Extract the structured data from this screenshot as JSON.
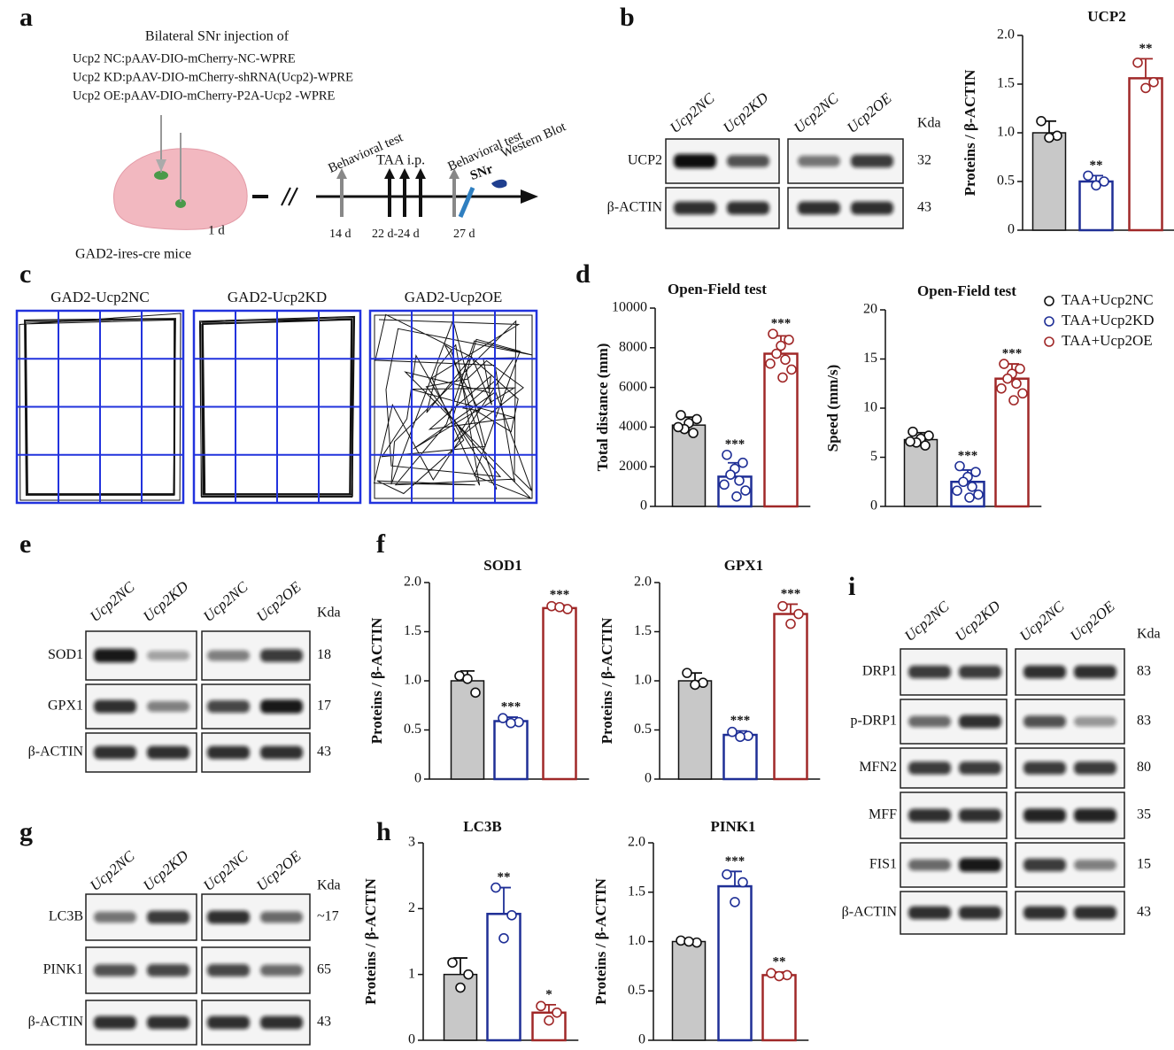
{
  "panels": [
    "a",
    "b",
    "c",
    "d",
    "e",
    "f",
    "g",
    "h",
    "i"
  ],
  "schematic": {
    "heading": "Bilateral SNr injection of",
    "constructs": [
      "Ucp2 NC:pAAV-DIO-mCherry-NC-WPRE",
      "Ucp2 KD:pAAV-DIO-mCherry-shRNA(Ucp2)-WPRE",
      "Ucp2 OE:pAAV-DIO-mCherry-P2A-Ucp2 -WPRE"
    ],
    "behavioral_1": "Behavioral test",
    "behavioral_2": "Behavioral test",
    "taa": "TAA i.p.",
    "snr": "SNr",
    "western": "Western Blot",
    "day_14": "14 d",
    "day_22": "22 d-24 d",
    "day_27": "27 d",
    "day_1": "1 d",
    "mice": "GAD2-ires-cre mice"
  },
  "open_field": [
    "GAD2-Ucp2NC",
    "GAD2-Ucp2KD",
    "GAD2-Ucp2OE"
  ],
  "blots": {
    "b": {
      "lanes": [
        "Ucp2NC",
        "Ucp2KD",
        "Ucp2NC",
        "Ucp2OE"
      ],
      "kda": "Kda",
      "rows": [
        {
          "label": "UCP2",
          "size": 32
        },
        {
          "label": "β-ACTIN",
          "size": 43
        }
      ]
    },
    "e": {
      "lanes": [
        "Ucp2NC",
        "Ucp2KD",
        "Ucp2NC",
        "Ucp2OE"
      ],
      "kda": "Kda",
      "rows": [
        {
          "label": "SOD1",
          "size": 18
        },
        {
          "label": "GPX1",
          "size": 17
        },
        {
          "label": "β-ACTIN",
          "size": 43
        }
      ]
    },
    "g": {
      "lanes": [
        "Ucp2NC",
        "Ucp2KD",
        "Ucp2NC",
        "Ucp2OE"
      ],
      "kda": "Kda",
      "rows": [
        {
          "label": "LC3B",
          "size": "~17"
        },
        {
          "label": "PINK1",
          "size": 65
        },
        {
          "label": "β-ACTIN",
          "size": 43
        }
      ]
    },
    "i": {
      "lanes": [
        "Ucp2NC",
        "Ucp2KD",
        "Ucp2NC",
        "Ucp2OE"
      ],
      "kda": "Kda",
      "rows": [
        {
          "label": "DRP1",
          "size": 83
        },
        {
          "label": "p-DRP1",
          "size": 83
        },
        {
          "label": "MFN2",
          "size": 80
        },
        {
          "label": "MFF",
          "size": 35
        },
        {
          "label": "FIS1",
          "size": 15
        },
        {
          "label": "β-ACTIN",
          "size": 43
        }
      ]
    }
  },
  "chart_data": [
    {
      "type": "bar",
      "title": "UCP2",
      "ylabel": "Proteins / β-ACTIN",
      "ylim": [
        0,
        2
      ],
      "yticks": [
        0,
        0.5,
        {
          "value": 1,
          "label": "1.0"
        },
        1.5,
        {
          "value": 2,
          "label": "2.0"
        }
      ],
      "colors": [
        "#c8c8c8",
        "#1f2f96",
        "#a02828"
      ],
      "values": [
        1.0,
        0.5,
        1.56
      ],
      "errors": [
        0.12,
        0.06,
        0.2
      ],
      "points": [
        [
          1.12,
          0.97,
          0.95
        ],
        [
          0.56,
          0.5,
          0.46
        ],
        [
          1.72,
          1.52,
          1.46
        ]
      ],
      "annotations": [
        null,
        "**",
        "**"
      ]
    },
    {
      "type": "bar",
      "title": "Open-Field test",
      "ylabel": "Total distance (mm)",
      "ylim": [
        0,
        10000
      ],
      "yticks": [
        0,
        2000,
        4000,
        6000,
        8000,
        10000
      ],
      "colors": [
        "#c8c8c8",
        "#1f2f96",
        "#a02828"
      ],
      "values": [
        4100,
        1500,
        7700
      ],
      "errors": [
        400,
        700,
        900
      ],
      "points": [
        [
          4600,
          4400,
          4200,
          3900,
          3700,
          4000
        ],
        [
          2600,
          2200,
          1900,
          1600,
          1300,
          1100,
          800,
          500
        ],
        [
          8700,
          8400,
          8100,
          7700,
          7400,
          7200,
          6900,
          6500
        ]
      ],
      "annotations": [
        null,
        "***",
        "***"
      ]
    },
    {
      "type": "bar",
      "title": "Open-Field test",
      "ylabel": "Speed (mm/s)",
      "ylim": [
        0,
        20
      ],
      "yticks": [
        0,
        5,
        10,
        15,
        20
      ],
      "colors": [
        "#c8c8c8",
        "#1f2f96",
        "#a02828"
      ],
      "values": [
        6.8,
        2.5,
        13
      ],
      "errors": [
        0.7,
        1.2,
        1.5
      ],
      "points": [
        [
          7.6,
          7.2,
          6.9,
          6.5,
          6.2,
          6.6
        ],
        [
          4.1,
          3.5,
          3.0,
          2.5,
          2.0,
          1.6,
          1.2,
          0.9
        ],
        [
          14.5,
          14.0,
          13.5,
          13.0,
          12.5,
          12.0,
          11.5,
          10.8
        ]
      ],
      "annotations": [
        null,
        "***",
        "***"
      ],
      "legend": [
        "TAA+Ucp2NC",
        "TAA+Ucp2KD",
        "TAA+Ucp2OE"
      ]
    },
    {
      "type": "bar",
      "title": "SOD1",
      "ylabel": "Proteins / β-ACTIN",
      "ylim": [
        0,
        2
      ],
      "yticks": [
        0,
        0.5,
        {
          "value": 1,
          "label": "1.0"
        },
        1.5,
        {
          "value": 2,
          "label": "2.0"
        }
      ],
      "colors": [
        "#c8c8c8",
        "#1f2f96",
        "#a02828"
      ],
      "values": [
        1.0,
        0.59,
        1.74
      ],
      "errors": [
        0.1,
        0.04,
        0.03
      ],
      "points": [
        [
          1.05,
          0.88,
          1.02
        ],
        [
          0.62,
          0.58,
          0.57
        ],
        [
          1.76,
          1.73,
          1.75
        ]
      ],
      "annotations": [
        null,
        "***",
        "***"
      ]
    },
    {
      "type": "bar",
      "title": "GPX1",
      "ylabel": "Proteins / β-ACTIN",
      "ylim": [
        0,
        2
      ],
      "yticks": [
        0,
        0.5,
        {
          "value": 1,
          "label": "1.0"
        },
        1.5,
        {
          "value": 2,
          "label": "2.0"
        }
      ],
      "colors": [
        "#c8c8c8",
        "#1f2f96",
        "#a02828"
      ],
      "values": [
        1.0,
        0.45,
        1.68
      ],
      "errors": [
        0.08,
        0.04,
        0.1
      ],
      "points": [
        [
          1.08,
          0.98,
          0.96
        ],
        [
          0.48,
          0.44,
          0.43
        ],
        [
          1.76,
          1.68,
          1.58
        ]
      ],
      "annotations": [
        null,
        "***",
        "***"
      ]
    },
    {
      "type": "bar",
      "title": "LC3B",
      "ylabel": "Proteins / β-ACTIN",
      "ylim": [
        0,
        3
      ],
      "yticks": [
        0,
        1,
        2,
        3
      ],
      "colors": [
        "#c8c8c8",
        "#1f2f96",
        "#a02828"
      ],
      "values": [
        1.0,
        1.92,
        0.42
      ],
      "errors": [
        0.25,
        0.4,
        0.12
      ],
      "points": [
        [
          1.18,
          1.0,
          0.8
        ],
        [
          2.32,
          1.9,
          1.55
        ],
        [
          0.52,
          0.42,
          0.3
        ]
      ],
      "annotations": [
        null,
        "**",
        "*"
      ]
    },
    {
      "type": "bar",
      "title": "PINK1",
      "ylabel": "Proteins / β-ACTIN",
      "ylim": [
        0,
        2
      ],
      "yticks": [
        0,
        0.5,
        {
          "value": 1,
          "label": "1.0"
        },
        1.5,
        {
          "value": 2,
          "label": "2.0"
        }
      ],
      "colors": [
        "#c8c8c8",
        "#1f2f96",
        "#a02828"
      ],
      "values": [
        1.0,
        1.56,
        0.66
      ],
      "errors": [
        0.02,
        0.15,
        0.03
      ],
      "points": [
        [
          1.01,
          0.99,
          1.0
        ],
        [
          1.68,
          1.6,
          1.4
        ],
        [
          0.68,
          0.66,
          0.65
        ]
      ],
      "annotations": [
        null,
        "***",
        "**"
      ]
    }
  ]
}
